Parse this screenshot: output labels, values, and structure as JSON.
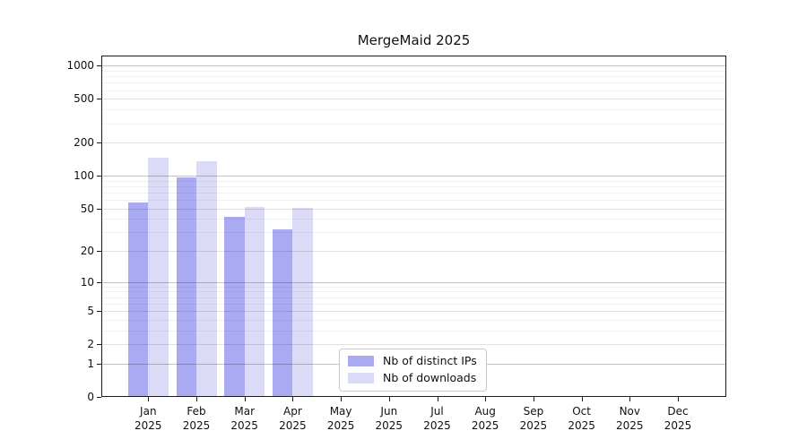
{
  "title": "MergeMaid 2025",
  "chart_data": {
    "type": "bar",
    "title": "MergeMaid 2025",
    "categories": [
      "Jan",
      "Feb",
      "Mar",
      "Apr",
      "May",
      "Jun",
      "Jul",
      "Aug",
      "Sep",
      "Oct",
      "Nov",
      "Dec"
    ],
    "category_year": "2025",
    "series": [
      {
        "name": "Nb of distinct IPs",
        "color": "#aaaaf2",
        "values": [
          57,
          96,
          42,
          32,
          0,
          0,
          0,
          0,
          0,
          0,
          0,
          0
        ]
      },
      {
        "name": "Nb of downloads",
        "color": "#dbdbf8",
        "values": [
          146,
          135,
          52,
          51,
          0,
          0,
          0,
          0,
          0,
          0,
          0,
          0
        ]
      }
    ],
    "y_scale": "log10(value+1)",
    "y_ticks": [
      0,
      1,
      2,
      5,
      10,
      20,
      50,
      100,
      200,
      500,
      1000
    ],
    "y_major_gridlines": [
      1,
      10,
      100,
      1000
    ],
    "ylim": [
      0,
      1236
    ],
    "grid": true,
    "legend_position": "lower-center"
  }
}
